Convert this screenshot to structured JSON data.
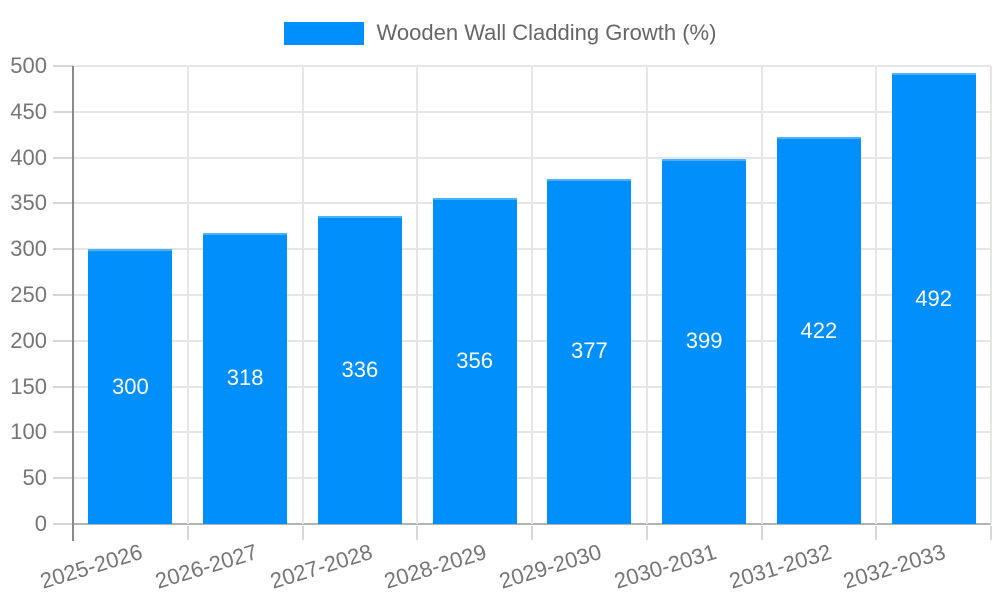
{
  "chart_data": {
    "type": "bar",
    "title": "Wooden Wall Cladding Growth (%)",
    "legend": {
      "label": "Wooden Wall Cladding Growth (%)",
      "position": "top-center"
    },
    "categories": [
      "2025-2026",
      "2026-2027",
      "2027-2028",
      "2028-2029",
      "2029-2030",
      "2030-2031",
      "2031-2032",
      "2032-2033"
    ],
    "series": [
      {
        "name": "Wooden Wall Cladding Growth (%)",
        "values": [
          300,
          318,
          336,
          356,
          377,
          399,
          422,
          492
        ]
      }
    ],
    "bar_labels": [
      "300",
      "318",
      "336",
      "356",
      "377",
      "399",
      "422",
      "492"
    ],
    "xlabel": "",
    "ylabel": "",
    "ylim": [
      0,
      500
    ],
    "ytick_step": 50,
    "yticks": [
      0,
      50,
      100,
      150,
      200,
      250,
      300,
      350,
      400,
      450,
      500
    ],
    "grid": "horizontal and vertical, light gray",
    "x_label_rotation_deg": -17,
    "colors": {
      "bar_fill": "#008FFB",
      "bar_value_text": "#ffffff",
      "axis_label_text": "#757575",
      "legend_text": "#666666",
      "gridline": "#e6e6e6",
      "tick": "#d6d6d6",
      "y_axis_line": "#8a8a8a",
      "x_axis_line": "#b3b3b3",
      "background": "#ffffff"
    }
  }
}
